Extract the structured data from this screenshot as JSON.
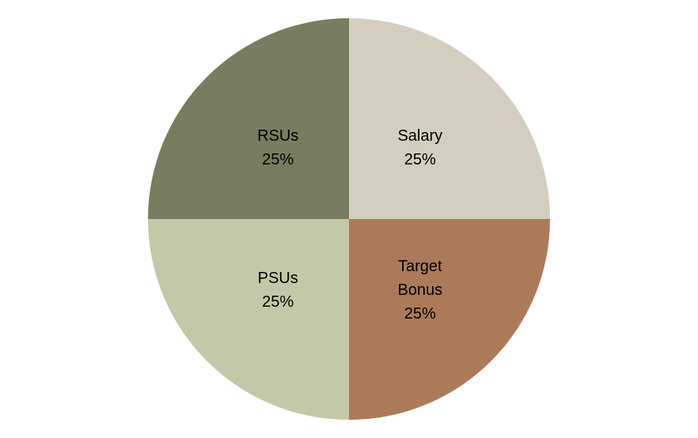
{
  "chart_data": {
    "type": "pie",
    "categories": [
      "Salary",
      "Target Bonus",
      "PSUs",
      "RSUs"
    ],
    "values": [
      25,
      25,
      25,
      25
    ],
    "value_labels": [
      "25%",
      "25%",
      "25%",
      "25%"
    ],
    "colors": [
      "#d3cec0",
      "#ad7a59",
      "#c3c8a8",
      "#787c60"
    ]
  }
}
